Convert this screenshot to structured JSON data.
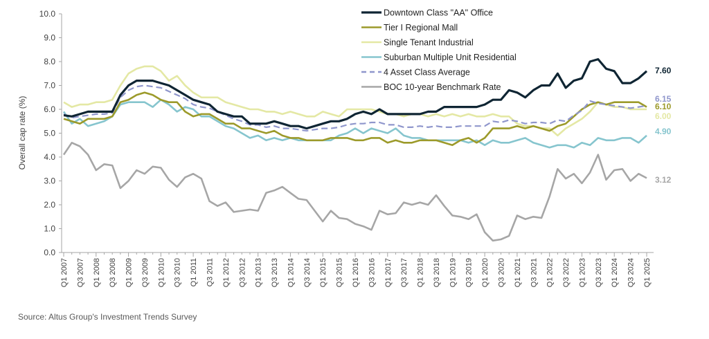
{
  "chart_data": {
    "type": "line",
    "title": "",
    "xlabel": "",
    "ylabel": "Overall cap rate (%)",
    "ylim": [
      0,
      10
    ],
    "yticks": [
      "0.0",
      "1.0",
      "2.0",
      "3.0",
      "4.0",
      "5.0",
      "6.0",
      "7.0",
      "8.0",
      "9.0",
      "10.0"
    ],
    "grid": false,
    "legend_position": "top-center",
    "x_tick_labels": [
      "Q1 2007",
      "Q3 2007",
      "Q1 2008",
      "Q3 2008",
      "Q1 2009",
      "Q3 2009",
      "Q1 2010",
      "Q3 2010",
      "Q1 2011",
      "Q3 2011",
      "Q1 2012",
      "Q3 2012",
      "Q1 2013",
      "Q3 2013",
      "Q1 2014",
      "Q3 2014",
      "Q1 2015",
      "Q3 2015",
      "Q1 2016",
      "Q3 2016",
      "Q1 2017",
      "Q3 2017",
      "Q1 2018",
      "Q3 2018",
      "Q1 2019",
      "Q3 2019",
      "Q1 2020",
      "Q3 2020",
      "Q1 2021",
      "Q3 2021",
      "Q1 2022",
      "Q3 2022",
      "Q1 2023",
      "Q3 2023",
      "Q1 2024",
      "Q3 2024",
      "Q1 2025"
    ],
    "x_frequency": "quarterly",
    "series": [
      {
        "name": "Downtown Class \"AA\" Office",
        "color": "#0f2533",
        "dash": false,
        "end_label": "7.60",
        "values": [
          5.75,
          5.7,
          5.8,
          5.9,
          5.9,
          5.9,
          5.9,
          6.6,
          7.0,
          7.2,
          7.2,
          7.2,
          7.1,
          7.0,
          6.8,
          6.6,
          6.4,
          6.3,
          6.2,
          5.9,
          5.8,
          5.7,
          5.7,
          5.4,
          5.4,
          5.4,
          5.5,
          5.4,
          5.3,
          5.3,
          5.2,
          5.3,
          5.4,
          5.5,
          5.5,
          5.6,
          5.8,
          5.9,
          5.8,
          6.0,
          5.8,
          5.8,
          5.8,
          5.8,
          5.8,
          5.9,
          5.9,
          6.1,
          6.1,
          6.1,
          6.1,
          6.1,
          6.2,
          6.4,
          6.4,
          6.8,
          6.7,
          6.5,
          6.8,
          7.0,
          7.0,
          7.5,
          6.9,
          7.2,
          7.3,
          8.0,
          8.1,
          7.7,
          7.6,
          7.1,
          7.1,
          7.3,
          7.6
        ]
      },
      {
        "name": "Tier I Regional Mall",
        "color": "#9c9a2a",
        "dash": false,
        "end_label": "6.10",
        "values": [
          5.6,
          5.5,
          5.4,
          5.6,
          5.6,
          5.6,
          5.7,
          6.3,
          6.4,
          6.6,
          6.7,
          6.6,
          6.4,
          6.3,
          6.3,
          5.9,
          5.7,
          5.8,
          5.8,
          5.6,
          5.4,
          5.4,
          5.2,
          5.2,
          5.1,
          5.0,
          5.1,
          4.9,
          4.8,
          4.8,
          4.7,
          4.7,
          4.7,
          4.8,
          4.8,
          4.8,
          4.7,
          4.7,
          4.8,
          4.8,
          4.6,
          4.7,
          4.6,
          4.6,
          4.7,
          4.7,
          4.7,
          4.6,
          4.5,
          4.7,
          4.8,
          4.6,
          4.8,
          5.2,
          5.2,
          5.2,
          5.3,
          5.2,
          5.3,
          5.2,
          5.1,
          5.3,
          5.4,
          5.7,
          6.0,
          6.2,
          6.3,
          6.2,
          6.3,
          6.3,
          6.3,
          6.3,
          6.1
        ]
      },
      {
        "name": "Single Tenant Industrial",
        "color": "#e4e8a4",
        "dash": false,
        "end_label": "6.00",
        "values": [
          6.3,
          6.1,
          6.2,
          6.2,
          6.3,
          6.3,
          6.4,
          7.0,
          7.5,
          7.7,
          7.8,
          7.8,
          7.6,
          7.2,
          7.4,
          7.0,
          6.7,
          6.5,
          6.5,
          6.5,
          6.3,
          6.2,
          6.1,
          6.0,
          6.0,
          5.9,
          5.9,
          5.8,
          5.9,
          5.8,
          5.7,
          5.7,
          5.9,
          5.8,
          5.7,
          6.0,
          6.0,
          6.0,
          6.0,
          5.9,
          5.8,
          5.8,
          5.7,
          5.8,
          5.8,
          5.7,
          5.8,
          5.7,
          5.8,
          5.7,
          5.8,
          5.7,
          5.7,
          5.8,
          5.7,
          5.7,
          5.4,
          5.3,
          5.3,
          5.2,
          5.2,
          4.9,
          5.2,
          5.4,
          5.6,
          5.9,
          6.3,
          6.2,
          6.1,
          6.1,
          6.0,
          6.0,
          6.0
        ]
      },
      {
        "name": "Suburban Multiple Unit Residential",
        "color": "#86c5ce",
        "dash": false,
        "end_label": "4.90",
        "values": [
          5.9,
          5.4,
          5.6,
          5.3,
          5.4,
          5.5,
          5.7,
          6.2,
          6.3,
          6.3,
          6.3,
          6.1,
          6.4,
          6.2,
          5.9,
          6.1,
          6.0,
          5.7,
          5.7,
          5.5,
          5.3,
          5.2,
          5.0,
          4.8,
          4.9,
          4.7,
          4.8,
          4.7,
          4.8,
          4.7,
          4.7,
          4.7,
          4.7,
          4.7,
          4.9,
          5.0,
          5.2,
          5.0,
          5.2,
          5.1,
          5.0,
          5.2,
          4.9,
          4.8,
          4.8,
          4.7,
          4.7,
          4.7,
          4.7,
          4.7,
          4.6,
          4.7,
          4.5,
          4.7,
          4.6,
          4.6,
          4.7,
          4.8,
          4.6,
          4.5,
          4.4,
          4.5,
          4.5,
          4.4,
          4.6,
          4.5,
          4.8,
          4.7,
          4.7,
          4.8,
          4.8,
          4.6,
          4.9
        ]
      },
      {
        "name": "4 Asset Class Average",
        "color": "#8f96cc",
        "dash": true,
        "end_label": "6.15",
        "values": [
          5.8,
          5.65,
          5.7,
          5.75,
          5.8,
          5.8,
          5.85,
          6.5,
          6.8,
          6.95,
          7.0,
          6.95,
          6.9,
          6.75,
          6.6,
          6.45,
          6.2,
          6.1,
          6.05,
          5.9,
          5.75,
          5.6,
          5.5,
          5.35,
          5.35,
          5.25,
          5.3,
          5.2,
          5.2,
          5.15,
          5.1,
          5.15,
          5.2,
          5.2,
          5.25,
          5.35,
          5.4,
          5.4,
          5.45,
          5.45,
          5.35,
          5.35,
          5.25,
          5.25,
          5.3,
          5.25,
          5.3,
          5.25,
          5.25,
          5.3,
          5.3,
          5.3,
          5.3,
          5.5,
          5.45,
          5.55,
          5.5,
          5.4,
          5.45,
          5.45,
          5.4,
          5.55,
          5.5,
          5.75,
          5.95,
          6.35,
          6.25,
          6.2,
          6.15,
          6.1,
          6.05,
          6.1,
          6.15
        ]
      },
      {
        "name": "BOC 10-year Benchmark Rate",
        "color": "#a6a6a6",
        "dash": false,
        "end_label": "3.12",
        "values": [
          4.1,
          4.6,
          4.45,
          4.1,
          3.45,
          3.7,
          3.65,
          2.7,
          3.0,
          3.45,
          3.3,
          3.6,
          3.55,
          3.05,
          2.75,
          3.15,
          3.3,
          3.1,
          2.15,
          1.95,
          2.1,
          1.7,
          1.75,
          1.8,
          1.75,
          2.5,
          2.6,
          2.75,
          2.5,
          2.25,
          2.2,
          1.75,
          1.3,
          1.75,
          1.45,
          1.4,
          1.2,
          1.1,
          0.95,
          1.75,
          1.6,
          1.65,
          2.1,
          2.0,
          2.1,
          2.0,
          2.4,
          1.95,
          1.55,
          1.5,
          1.4,
          1.6,
          0.85,
          0.5,
          0.55,
          0.7,
          1.55,
          1.4,
          1.5,
          1.45,
          2.35,
          3.5,
          3.1,
          3.3,
          2.9,
          3.35,
          4.1,
          3.05,
          3.45,
          3.5,
          3.0,
          3.3,
          3.12
        ]
      }
    ]
  },
  "source": "Source:  Altus Group's Investment Trends Survey"
}
